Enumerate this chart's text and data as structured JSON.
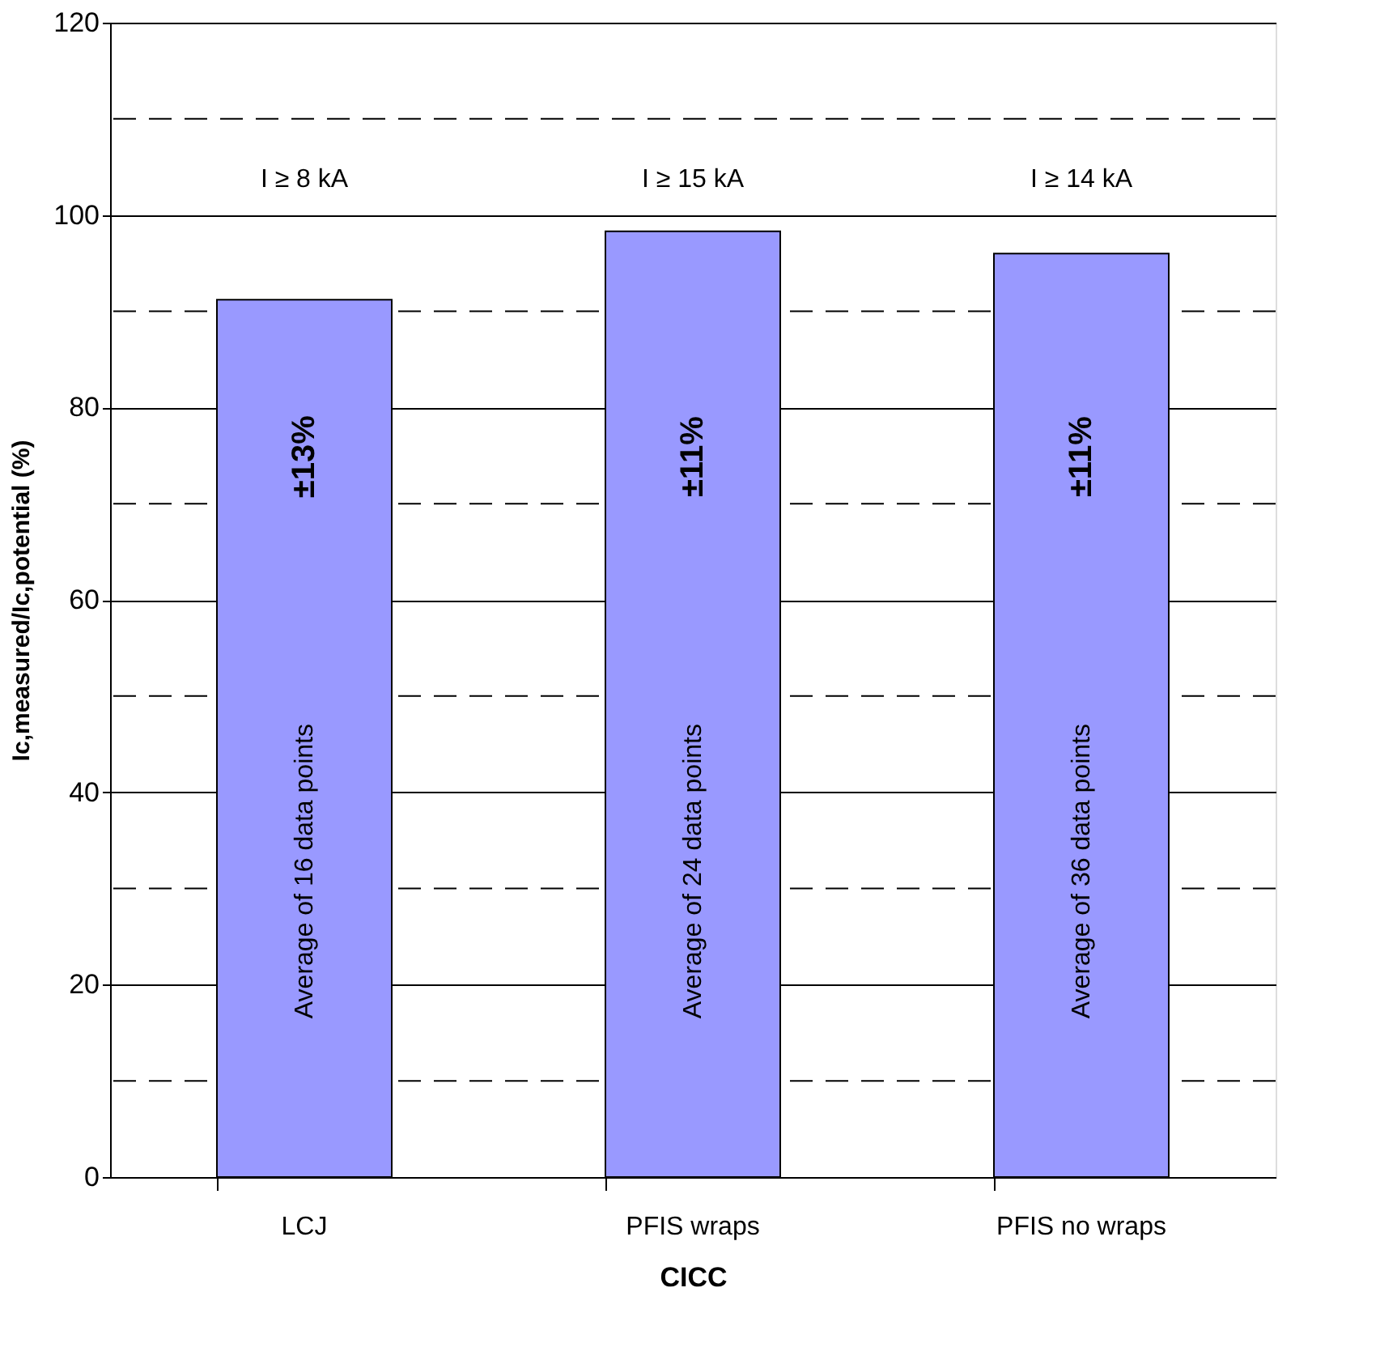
{
  "chart_data": {
    "type": "bar",
    "xlabel": "CICC",
    "ylabel": "Ic,measured/Ic,potential (%)",
    "categories": [
      "LCJ",
      "PFIS wraps",
      "PFIS no wraps"
    ],
    "series": [
      {
        "color": "#9999ff",
        "values": [
          91.2,
          98.3,
          96.0
        ]
      }
    ],
    "ylim": [
      0,
      120
    ],
    "yticks": [
      0,
      20,
      40,
      60,
      80,
      100,
      120
    ],
    "grid": "y",
    "ref_lines": [
      {
        "axis": "y",
        "value": 10,
        "line_style": "dashed"
      },
      {
        "axis": "y",
        "value": 30,
        "line_style": "dashed"
      },
      {
        "axis": "y",
        "value": 50,
        "line_style": "dashed"
      },
      {
        "axis": "y",
        "value": 70,
        "line_style": "dashed"
      },
      {
        "axis": "y",
        "value": 90,
        "line_style": "dashed"
      },
      {
        "axis": "y",
        "value": 110,
        "line_style": "dashed"
      }
    ],
    "annotations": [
      "I ≥ 8 kA",
      "I ≥ 15 kA",
      "I ≥ 14 kA",
      "±13%",
      "±11%",
      "±11%",
      "Average of 16 data points",
      "Average of 24 data points",
      "Average of 36 data points"
    ]
  }
}
